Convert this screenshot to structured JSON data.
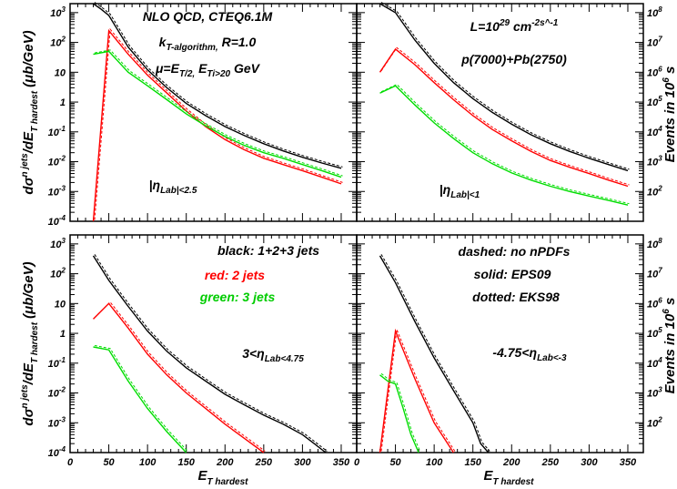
{
  "chart_data": [
    {
      "type": "line",
      "panel": "top-left",
      "x_range": [
        0,
        370
      ],
      "y_scale": "log",
      "y_range": [
        0.0001,
        2000
      ],
      "annotations": [
        "NLO QCD, CTEQ6.1M",
        "k_T-algorithm, R=1.0",
        "μ=E_T/2, E_Ti>20 GeV",
        "|η_Lab|<2.5"
      ],
      "series": [
        {
          "color": "#000000",
          "x": [
            30,
            40,
            50,
            75,
            100,
            125,
            150,
            175,
            200,
            225,
            250,
            275,
            300,
            325,
            350
          ],
          "y": [
            2000,
            1300,
            800,
            70,
            12,
            3.0,
            0.9,
            0.35,
            0.15,
            0.075,
            0.04,
            0.023,
            0.014,
            0.009,
            0.006
          ]
        },
        {
          "color": "#ff0000",
          "x": [
            30,
            50,
            75,
            100,
            125,
            150,
            175,
            200,
            225,
            250,
            275,
            300,
            325,
            350
          ],
          "y": [
            0.0001,
            250,
            40,
            8,
            2.0,
            0.5,
            0.15,
            0.055,
            0.025,
            0.013,
            0.008,
            0.005,
            0.003,
            0.0018
          ]
        },
        {
          "color": "#00dd00",
          "x": [
            30,
            50,
            75,
            100,
            125,
            150,
            175,
            200,
            225,
            250,
            275,
            300,
            325,
            350
          ],
          "y": [
            40,
            50,
            10,
            3.5,
            1.2,
            0.4,
            0.16,
            0.07,
            0.035,
            0.02,
            0.013,
            0.008,
            0.005,
            0.003
          ]
        }
      ]
    },
    {
      "type": "line",
      "panel": "top-right",
      "x_range": [
        0,
        370
      ],
      "y_scale": "log",
      "y_range": [
        0.0001,
        2000
      ],
      "annotations": [
        "L=10^29 cm^-2s^-1",
        "p(7000)+Pb(2750)",
        "|η_Lab|<1"
      ],
      "series": [
        {
          "color": "#000000",
          "x": [
            30,
            50,
            75,
            100,
            125,
            150,
            175,
            200,
            225,
            250,
            275,
            300,
            325,
            350
          ],
          "y": [
            2000,
            1000,
            120,
            20,
            4.5,
            1.3,
            0.45,
            0.18,
            0.08,
            0.04,
            0.022,
            0.013,
            0.008,
            0.005
          ]
        },
        {
          "color": "#ff0000",
          "x": [
            30,
            50,
            75,
            100,
            125,
            150,
            175,
            200,
            225,
            250,
            275,
            300,
            325,
            350
          ],
          "y": [
            10,
            60,
            18,
            4.5,
            1.2,
            0.35,
            0.12,
            0.05,
            0.022,
            0.011,
            0.0065,
            0.004,
            0.0024,
            0.0015
          ]
        },
        {
          "color": "#00dd00",
          "x": [
            30,
            50,
            75,
            100,
            125,
            150,
            175,
            200,
            225,
            250,
            275,
            300,
            325,
            350
          ],
          "y": [
            2,
            3.5,
            0.8,
            0.2,
            0.06,
            0.02,
            0.0085,
            0.0042,
            0.0024,
            0.0015,
            0.001,
            0.0007,
            0.0005,
            0.00035
          ]
        }
      ]
    },
    {
      "type": "line",
      "panel": "bottom-left",
      "x_range": [
        0,
        370
      ],
      "y_scale": "log",
      "y_range": [
        0.0001,
        2000
      ],
      "annotations": [
        "black: 1+2+3 jets",
        "red: 2 jets",
        "green: 3 jets",
        "3<η_Lab<4.75"
      ],
      "series": [
        {
          "color": "#000000",
          "x": [
            30,
            50,
            75,
            100,
            125,
            150,
            175,
            200,
            225,
            250,
            275,
            300,
            315,
            330
          ],
          "y": [
            400,
            60,
            8,
            1.2,
            0.25,
            0.07,
            0.025,
            0.009,
            0.004,
            0.0018,
            0.0009,
            0.0004,
            0.0002,
            0.0001
          ]
        },
        {
          "color": "#ff0000",
          "x": [
            30,
            50,
            75,
            100,
            125,
            150,
            175,
            200,
            225,
            250
          ],
          "y": [
            3,
            10,
            1.5,
            0.2,
            0.04,
            0.01,
            0.003,
            0.0009,
            0.0003,
            0.0001
          ]
        },
        {
          "color": "#00dd00",
          "x": [
            30,
            50,
            75,
            100,
            125,
            150
          ],
          "y": [
            0.35,
            0.28,
            0.025,
            0.003,
            0.0005,
            0.0001
          ]
        }
      ]
    },
    {
      "type": "line",
      "panel": "bottom-right",
      "x_range": [
        0,
        370
      ],
      "y_scale": "log",
      "y_range": [
        0.0001,
        2000
      ],
      "annotations": [
        "dashed: no nPDFs",
        "solid: EPS09",
        "dotted: EKS98",
        "-4.75<η_Lab<-3"
      ],
      "series": [
        {
          "color": "#000000",
          "x": [
            30,
            50,
            75,
            100,
            125,
            150,
            160,
            170
          ],
          "y": [
            400,
            50,
            2.5,
            0.15,
            0.012,
            0.001,
            0.0002,
            0.0001
          ]
        },
        {
          "color": "#ff0000",
          "x": [
            30,
            50,
            75,
            100,
            125
          ],
          "y": [
            0.0001,
            1.2,
            0.03,
            0.001,
            0.0001
          ]
        },
        {
          "color": "#00dd00",
          "x": [
            30,
            40,
            50,
            60,
            70,
            80
          ],
          "y": [
            0.04,
            0.025,
            0.02,
            0.003,
            0.0004,
            0.0001
          ]
        }
      ]
    }
  ],
  "y_ticks": [
    "10^-4",
    "10^-3",
    "10^-2",
    "10^-1",
    "1",
    "10",
    "10^2",
    "10^3"
  ],
  "right_ticks": [
    "10^2",
    "10^3",
    "10^4",
    "10^5",
    "10^6",
    "10^7",
    "10^8"
  ],
  "x_ticks": [
    "0",
    "50",
    "100",
    "150",
    "200",
    "250",
    "300",
    "350"
  ],
  "y_title_prefix": "dσ",
  "y_title_sup": "n jets",
  "y_title_mid": "/dE",
  "y_title_sub": "T hardest",
  "y_title_unit": " (μb/GeV)",
  "right_title": "Events in 10",
  "right_title_sup": "6",
  "right_title_end": " s",
  "x_title_main": "E",
  "x_title_sub": "T hardest"
}
